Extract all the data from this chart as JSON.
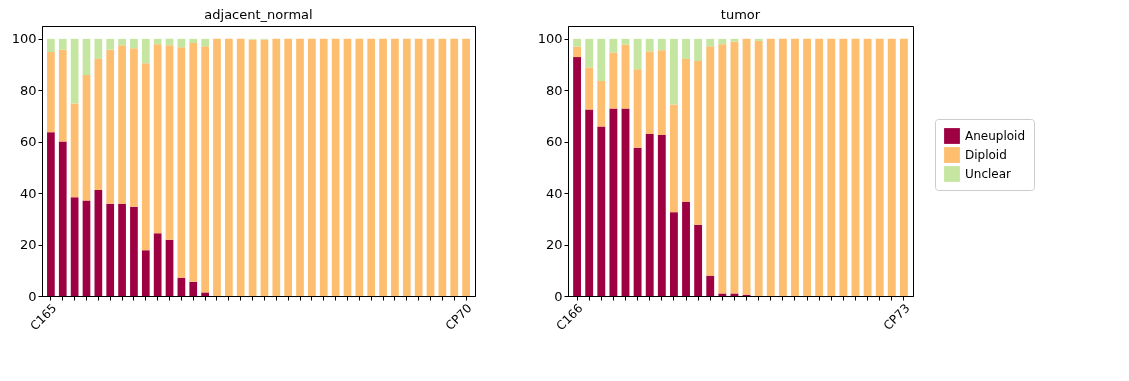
{
  "chart_data": [
    {
      "type": "bar",
      "title": "adjacent_normal",
      "stacked": true,
      "legend": false,
      "categories": [
        "C165",
        null,
        null,
        null,
        null,
        null,
        null,
        null,
        null,
        null,
        null,
        null,
        null,
        null,
        null,
        null,
        null,
        null,
        null,
        null,
        null,
        null,
        null,
        null,
        null,
        null,
        null,
        null,
        null,
        null,
        null,
        null,
        null,
        null,
        null,
        "CP70"
      ],
      "series": [
        {
          "color": "#9e0142",
          "values": [
            63.7,
            60.1,
            38.4,
            37.1,
            41.2,
            35.9,
            35.9,
            34.7,
            17.8,
            24.4,
            21.9,
            7.1,
            5.5,
            1.4,
            0,
            0,
            0,
            0,
            0,
            0,
            0,
            0,
            0,
            0,
            0,
            0,
            0,
            0,
            0,
            0,
            0,
            0,
            0,
            0,
            0,
            0
          ]
        },
        {
          "color": "#fdbe6f",
          "values": [
            31.2,
            35.7,
            36.5,
            48.8,
            51.0,
            59.9,
            61.6,
            61.6,
            72.7,
            73.5,
            75.6,
            89.6,
            92.9,
            95.7,
            100,
            100,
            100,
            99.7,
            99.7,
            100,
            100,
            100,
            100,
            100,
            100,
            100,
            100,
            100,
            100,
            100,
            100,
            100,
            100,
            100,
            100,
            100
          ]
        },
        {
          "color": "#c4e6a0",
          "values": [
            5.1,
            4.2,
            25.1,
            14.1,
            7.8,
            4.2,
            2.5,
            3.7,
            9.5,
            2.1,
            2.5,
            3.3,
            1.6,
            2.9,
            0,
            0,
            0,
            0.3,
            0.3,
            0,
            0,
            0,
            0,
            0,
            0,
            0,
            0,
            0,
            0,
            0,
            0,
            0,
            0,
            0,
            0,
            0
          ]
        }
      ],
      "ylim": [
        0,
        105
      ],
      "yticks": [
        0,
        20,
        40,
        60,
        80,
        100
      ]
    },
    {
      "type": "bar",
      "title": "tumor",
      "stacked": true,
      "legend": "right",
      "categories": [
        "C166",
        null,
        null,
        null,
        null,
        null,
        null,
        null,
        null,
        null,
        null,
        null,
        null,
        null,
        null,
        null,
        null,
        null,
        null,
        null,
        null,
        null,
        null,
        null,
        null,
        null,
        null,
        "CP73"
      ],
      "series": [
        {
          "name": "Aneuploid",
          "color": "#9e0142",
          "values": [
            92.9,
            72.5,
            65.9,
            72.9,
            72.9,
            57.7,
            63.0,
            62.6,
            32.6,
            36.7,
            27.7,
            7.9,
            1.0,
            1.0,
            0.5,
            0,
            0,
            0,
            0,
            0,
            0,
            0,
            0,
            0,
            0,
            0,
            0,
            0
          ]
        },
        {
          "name": "Diploid",
          "color": "#fdbe6f",
          "values": [
            4.1,
            16.4,
            17.7,
            21.8,
            24.8,
            30.5,
            32.1,
            33.0,
            41.9,
            55.5,
            63.7,
            89.2,
            96.9,
            97.9,
            99.5,
            99.2,
            100,
            100,
            100,
            100,
            100,
            100,
            100,
            100,
            100,
            100,
            100,
            100
          ]
        },
        {
          "name": "Unclear",
          "color": "#c4e6a0",
          "values": [
            3.0,
            11.1,
            16.4,
            5.3,
            2.3,
            11.8,
            4.9,
            4.4,
            25.5,
            7.8,
            8.6,
            2.9,
            2.1,
            1.1,
            0,
            0.8,
            0,
            0,
            0,
            0,
            0,
            0,
            0,
            0,
            0,
            0,
            0,
            0
          ]
        }
      ],
      "ylim": [
        0,
        105
      ],
      "yticks": [
        0,
        20,
        40,
        60,
        80,
        100
      ]
    }
  ]
}
